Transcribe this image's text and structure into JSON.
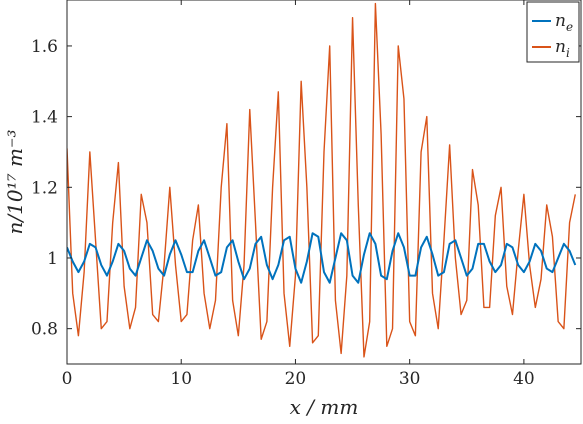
{
  "chart_data": {
    "type": "line",
    "title": "",
    "xlabel": "x / mm",
    "ylabel": "n/10¹⁷ m⁻³",
    "xlim": [
      0,
      45
    ],
    "ylim": [
      0.7,
      1.73
    ],
    "x_ticks": [
      0,
      10,
      20,
      30,
      40
    ],
    "y_ticks": [
      0.8,
      1,
      1.2,
      1.4,
      1.6
    ],
    "x_tick_labels": [
      "0",
      "10",
      "20",
      "30",
      "40"
    ],
    "y_tick_labels": [
      "0.8",
      "1",
      "1.2",
      "1.4",
      "1.6"
    ],
    "grid": false,
    "legend_position": "top-right",
    "series": [
      {
        "name": "n_e",
        "label_main": "n",
        "label_sub": "e",
        "color": "#0072BD",
        "x": [
          0.0,
          0.5,
          1.0,
          1.5,
          2.0,
          2.5,
          3.0,
          3.5,
          4.0,
          4.5,
          5.0,
          5.5,
          6.0,
          6.5,
          7.0,
          7.5,
          8.0,
          8.5,
          9.0,
          9.5,
          10.0,
          10.5,
          11.0,
          11.5,
          12.0,
          12.5,
          13.0,
          13.5,
          14.0,
          14.5,
          15.0,
          15.5,
          16.0,
          16.5,
          17.0,
          17.5,
          18.0,
          18.5,
          19.0,
          19.5,
          20.0,
          20.5,
          21.0,
          21.5,
          22.0,
          22.5,
          23.0,
          23.5,
          24.0,
          24.5,
          25.0,
          25.5,
          26.0,
          26.5,
          27.0,
          27.5,
          28.0,
          28.5,
          29.0,
          29.5,
          30.0,
          30.5,
          31.0,
          31.5,
          32.0,
          32.5,
          33.0,
          33.5,
          34.0,
          34.5,
          35.0,
          35.5,
          36.0,
          36.5,
          37.0,
          37.5,
          38.0,
          38.5,
          39.0,
          39.5,
          40.0,
          40.5,
          41.0,
          41.5,
          42.0,
          42.5,
          43.0,
          43.5,
          44.0,
          44.5
        ],
        "y": [
          1.03,
          0.99,
          0.96,
          0.99,
          1.04,
          1.03,
          0.98,
          0.95,
          0.99,
          1.04,
          1.02,
          0.97,
          0.95,
          1.0,
          1.05,
          1.02,
          0.97,
          0.95,
          1.01,
          1.05,
          1.01,
          0.96,
          0.96,
          1.02,
          1.05,
          1.0,
          0.95,
          0.96,
          1.03,
          1.05,
          0.99,
          0.94,
          0.97,
          1.04,
          1.06,
          0.98,
          0.94,
          0.98,
          1.05,
          1.06,
          0.97,
          0.93,
          0.99,
          1.07,
          1.06,
          0.96,
          0.93,
          1.0,
          1.07,
          1.05,
          0.95,
          0.93,
          1.01,
          1.07,
          1.04,
          0.95,
          0.94,
          1.02,
          1.07,
          1.03,
          0.95,
          0.95,
          1.03,
          1.06,
          1.01,
          0.95,
          0.96,
          1.04,
          1.05,
          1.0,
          0.95,
          0.97,
          1.04,
          1.04,
          0.99,
          0.96,
          0.98,
          1.04,
          1.03,
          0.98,
          0.96,
          0.99,
          1.04,
          1.02,
          0.97,
          0.96,
          1.0,
          1.04,
          1.02,
          0.98
        ]
      },
      {
        "name": "n_i",
        "label_main": "n",
        "label_sub": "i",
        "color": "#D95319",
        "x": [
          0.0,
          0.5,
          1.0,
          1.5,
          2.0,
          2.5,
          3.0,
          3.5,
          4.0,
          4.5,
          5.0,
          5.5,
          6.0,
          6.5,
          7.0,
          7.5,
          8.0,
          8.5,
          9.0,
          9.5,
          10.0,
          10.5,
          11.0,
          11.5,
          12.0,
          12.5,
          13.0,
          13.5,
          14.0,
          14.5,
          15.0,
          15.5,
          16.0,
          16.5,
          17.0,
          17.5,
          18.0,
          18.5,
          19.0,
          19.5,
          20.0,
          20.5,
          21.0,
          21.5,
          22.0,
          22.5,
          23.0,
          23.5,
          24.0,
          24.5,
          25.0,
          25.5,
          26.0,
          26.5,
          27.0,
          27.5,
          28.0,
          28.5,
          29.0,
          29.5,
          30.0,
          30.5,
          31.0,
          31.5,
          32.0,
          32.5,
          33.0,
          33.5,
          34.0,
          34.5,
          35.0,
          35.5,
          36.0,
          36.5,
          37.0,
          37.5,
          38.0,
          38.5,
          39.0,
          39.5,
          40.0,
          40.5,
          41.0,
          41.5,
          42.0,
          42.5,
          43.0,
          43.5,
          44.0,
          44.5
        ],
        "y": [
          1.31,
          0.9,
          0.78,
          0.96,
          1.3,
          1.05,
          0.8,
          0.82,
          1.1,
          1.27,
          0.92,
          0.8,
          0.86,
          1.18,
          1.1,
          0.84,
          0.82,
          0.98,
          1.2,
          0.98,
          0.82,
          0.84,
          1.05,
          1.15,
          0.9,
          0.8,
          0.88,
          1.2,
          1.38,
          0.88,
          0.78,
          0.98,
          1.42,
          1.1,
          0.77,
          0.82,
          1.2,
          1.47,
          0.9,
          0.75,
          0.95,
          1.5,
          1.2,
          0.76,
          0.78,
          1.3,
          1.6,
          0.88,
          0.73,
          0.95,
          1.68,
          1.15,
          0.72,
          0.82,
          1.72,
          1.35,
          0.75,
          0.8,
          1.6,
          1.45,
          0.82,
          0.78,
          1.3,
          1.4,
          0.9,
          0.8,
          1.05,
          1.32,
          1.0,
          0.84,
          0.88,
          1.25,
          1.15,
          0.86,
          0.86,
          1.12,
          1.2,
          0.92,
          0.84,
          1.02,
          1.18,
          0.98,
          0.86,
          0.94,
          1.15,
          1.06,
          0.82,
          0.8,
          1.1,
          1.18
        ]
      }
    ]
  }
}
